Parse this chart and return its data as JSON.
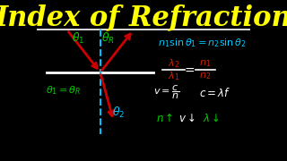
{
  "bg_color": "#000000",
  "title": "Index of Refraction",
  "title_color": "#FFFF00",
  "title_fontsize": 22,
  "line_color": "#FFFFFF",
  "dashed_color": "#00BFFF",
  "arrow_color": "#CC0000",
  "green_color": "#00CC00",
  "cyan_color": "#00CCFF",
  "red_color": "#CC2200",
  "white_color": "#FFFFFF",
  "yellow_color": "#FFFF00"
}
